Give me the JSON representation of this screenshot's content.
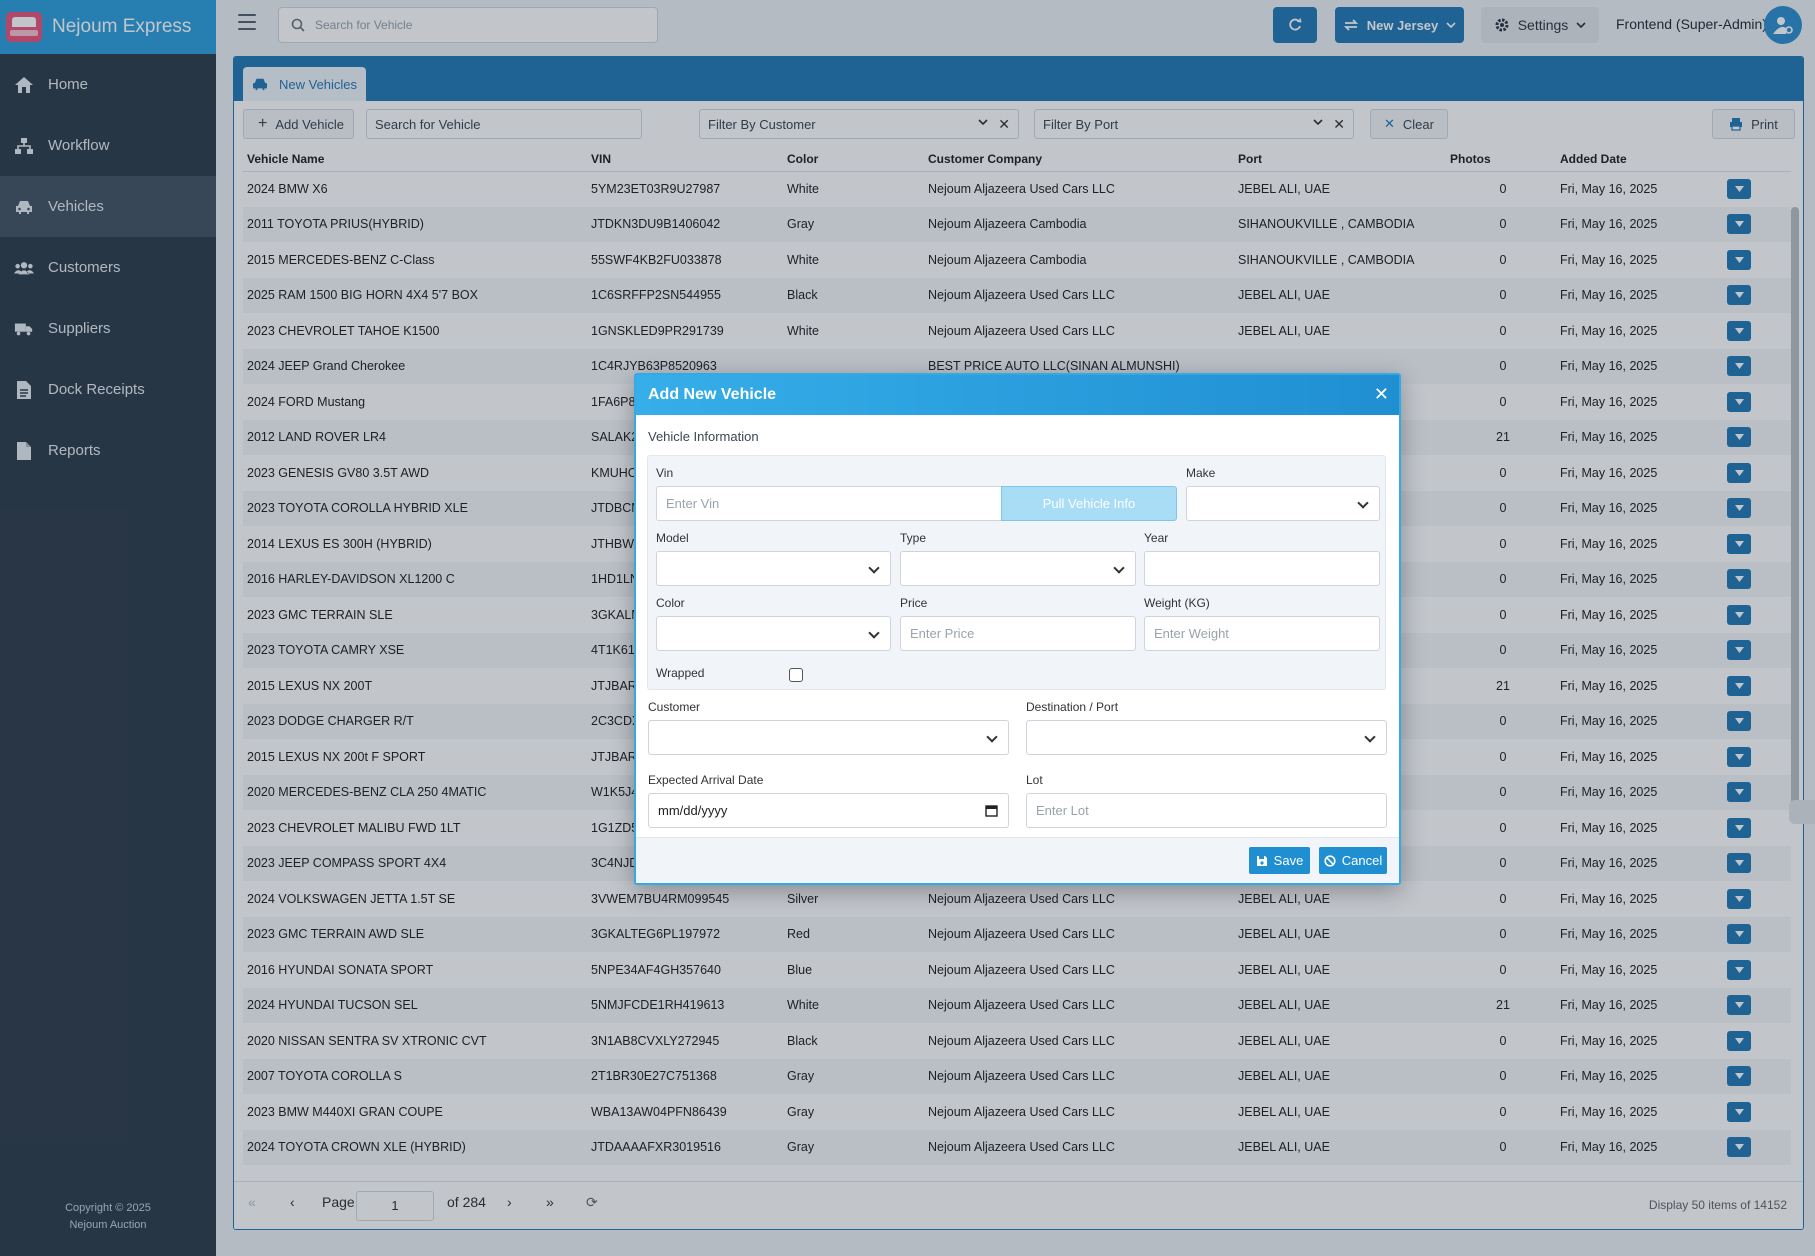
{
  "app": {
    "title": "Nejoum Express"
  },
  "sidebar": {
    "items": [
      {
        "label": "Home",
        "icon": "home-icon"
      },
      {
        "label": "Workflow",
        "icon": "sitemap-icon"
      },
      {
        "label": "Vehicles",
        "icon": "car-icon",
        "active": true
      },
      {
        "label": "Customers",
        "icon": "users-icon"
      },
      {
        "label": "Suppliers",
        "icon": "truck-icon"
      },
      {
        "label": "Dock Receipts",
        "icon": "document-icon"
      },
      {
        "label": "Reports",
        "icon": "file-icon"
      }
    ],
    "copyright_line1": "Copyright © 2025",
    "copyright_line2": "Nejoum Auction"
  },
  "topbar": {
    "search_placeholder": "Search for Vehicle",
    "region_label": "New Jersey",
    "settings_label": "Settings",
    "user_label": "Frontend (Super-Admin)"
  },
  "tab": {
    "label": "New Vehicles"
  },
  "toolbar": {
    "add_label": "Add Vehicle",
    "search_placeholder": "Search for Vehicle",
    "filter_customer": "Filter By Customer",
    "filter_port": "Filter By Port",
    "clear_label": "Clear",
    "print_label": "Print"
  },
  "table": {
    "headers": [
      "Vehicle Name",
      "VIN",
      "Color",
      "Customer Company",
      "Port",
      "Photos",
      "Added Date"
    ],
    "rows": [
      [
        "2024 BMW X6",
        "5YM23ET03R9U27987",
        "White",
        "Nejoum Aljazeera Used Cars LLC",
        "JEBEL ALI, UAE",
        "0",
        "Fri, May 16, 2025"
      ],
      [
        "2011 TOYOTA PRIUS(HYBRID)",
        "JTDKN3DU9B1406042",
        "Gray",
        "Nejoum Aljazeera Cambodia",
        "SIHANOUKVILLE , CAMBODIA",
        "0",
        "Fri, May 16, 2025"
      ],
      [
        "2015 MERCEDES-BENZ C-Class",
        "55SWF4KB2FU033878",
        "White",
        "Nejoum Aljazeera Cambodia",
        "SIHANOUKVILLE , CAMBODIA",
        "0",
        "Fri, May 16, 2025"
      ],
      [
        "2025 RAM 1500 BIG HORN 4X4 5'7 BOX",
        "1C6SRFFP2SN544955",
        "Black",
        "Nejoum Aljazeera Used Cars LLC",
        "JEBEL ALI, UAE",
        "0",
        "Fri, May 16, 2025"
      ],
      [
        "2023 CHEVROLET TAHOE K1500",
        "1GNSKLED9PR291739",
        "White",
        "Nejoum Aljazeera Used Cars LLC",
        "JEBEL ALI, UAE",
        "0",
        "Fri, May 16, 2025"
      ],
      [
        "2024 JEEP Grand Cherokee",
        "1C4RJYB63P8520963",
        "",
        "BEST PRICE AUTO LLC(SINAN ALMUNSHI)",
        "",
        "0",
        "Fri, May 16, 2025"
      ],
      [
        "2024 FORD Mustang",
        "1FA6P8",
        "",
        "",
        "",
        "0",
        "Fri, May 16, 2025"
      ],
      [
        "2012 LAND ROVER LR4",
        "SALAK2",
        "",
        "",
        "",
        "21",
        "Fri, May 16, 2025"
      ],
      [
        "2023 GENESIS GV80 3.5T AWD",
        "KMUHC",
        "",
        "",
        "",
        "0",
        "Fri, May 16, 2025"
      ],
      [
        "2023 TOYOTA COROLLA HYBRID XLE",
        "JTDBCM",
        "",
        "",
        "",
        "0",
        "Fri, May 16, 2025"
      ],
      [
        "2014 LEXUS ES 300H (HYBRID)",
        "JTHBW1",
        "",
        "",
        "",
        "0",
        "Fri, May 16, 2025"
      ],
      [
        "2016 HARLEY-DAVIDSON XL1200 C",
        "1HD1LN",
        "",
        "",
        "",
        "0",
        "Fri, May 16, 2025"
      ],
      [
        "2023 GMC TERRAIN SLE",
        "3GKALM",
        "",
        "",
        "",
        "0",
        "Fri, May 16, 2025"
      ],
      [
        "2023 TOYOTA CAMRY XSE",
        "4T1K61",
        "",
        "",
        "",
        "0",
        "Fri, May 16, 2025"
      ],
      [
        "2015 LEXUS NX 200T",
        "JTJBARE",
        "",
        "",
        "",
        "21",
        "Fri, May 16, 2025"
      ],
      [
        "2023 DODGE CHARGER R/T",
        "2C3CDX",
        "",
        "",
        "",
        "0",
        "Fri, May 16, 2025"
      ],
      [
        "2015 LEXUS NX 200t F SPORT",
        "JTJBARE",
        "",
        "",
        "",
        "0",
        "Fri, May 16, 2025"
      ],
      [
        "2020 MERCEDES-BENZ CLA 250 4MATIC",
        "W1K5J4",
        "",
        "",
        "",
        "0",
        "Fri, May 16, 2025"
      ],
      [
        "2023 CHEVROLET MALIBU FWD 1LT",
        "1G1ZD5",
        "",
        "",
        "",
        "0",
        "Fri, May 16, 2025"
      ],
      [
        "2023 JEEP COMPASS SPORT 4X4",
        "3C4NJD",
        "",
        "",
        "",
        "0",
        "Fri, May 16, 2025"
      ],
      [
        "2024 VOLKSWAGEN JETTA 1.5T SE",
        "3VWEM7BU4RM099545",
        "Silver",
        "Nejoum Aljazeera Used Cars LLC",
        "JEBEL ALI, UAE",
        "0",
        "Fri, May 16, 2025"
      ],
      [
        "2023 GMC TERRAIN AWD SLE",
        "3GKALTEG6PL197972",
        "Red",
        "Nejoum Aljazeera Used Cars LLC",
        "JEBEL ALI, UAE",
        "0",
        "Fri, May 16, 2025"
      ],
      [
        "2016 HYUNDAI SONATA SPORT",
        "5NPE34AF4GH357640",
        "Blue",
        "Nejoum Aljazeera Used Cars LLC",
        "JEBEL ALI, UAE",
        "0",
        "Fri, May 16, 2025"
      ],
      [
        "2024 HYUNDAI TUCSON SEL",
        "5NMJFCDE1RH419613",
        "White",
        "Nejoum Aljazeera Used Cars LLC",
        "JEBEL ALI, UAE",
        "21",
        "Fri, May 16, 2025"
      ],
      [
        "2020 NISSAN SENTRA SV XTRONIC CVT",
        "3N1AB8CVXLY272945",
        "Black",
        "Nejoum Aljazeera Used Cars LLC",
        "JEBEL ALI, UAE",
        "0",
        "Fri, May 16, 2025"
      ],
      [
        "2007 TOYOTA COROLLA S",
        "2T1BR30E27C751368",
        "Gray",
        "Nejoum Aljazeera Used Cars LLC",
        "JEBEL ALI, UAE",
        "0",
        "Fri, May 16, 2025"
      ],
      [
        "2023 BMW M440XI GRAN COUPE",
        "WBA13AW04PFN86439",
        "Gray",
        "Nejoum Aljazeera Used Cars LLC",
        "JEBEL ALI, UAE",
        "0",
        "Fri, May 16, 2025"
      ],
      [
        "2024 TOYOTA CROWN XLE (HYBRID)",
        "JTDAAAAFXR3019516",
        "Gray",
        "Nejoum Aljazeera Used Cars LLC",
        "JEBEL ALI, UAE",
        "0",
        "Fri, May 16, 2025"
      ]
    ]
  },
  "pager": {
    "page_label": "Page",
    "page_value": "1",
    "of_label": "of 284",
    "display_info": "Display 50 items of 14152"
  },
  "modal": {
    "title": "Add New Vehicle",
    "section": "Vehicle Information",
    "vin_label": "Vin",
    "vin_placeholder": "Enter Vin",
    "pull_label": "Pull Vehicle Info",
    "make_label": "Make",
    "model_label": "Model",
    "type_label": "Type",
    "year_label": "Year",
    "color_label": "Color",
    "price_label": "Price",
    "price_placeholder": "Enter Price",
    "weight_label": "Weight (KG)",
    "weight_placeholder": "Enter Weight",
    "wrapped_label": "Wrapped",
    "customer_label": "Customer",
    "destination_label": "Destination / Port",
    "arrival_label": "Expected Arrival Date",
    "arrival_placeholder": "mm/dd/yyyy",
    "lot_label": "Lot",
    "lot_placeholder": "Enter Lot",
    "save_label": "Save",
    "cancel_label": "Cancel"
  },
  "colors": {
    "primary": "#2479b5",
    "brand": "#2f9fdc",
    "sidebar": "#2f3d4a"
  }
}
